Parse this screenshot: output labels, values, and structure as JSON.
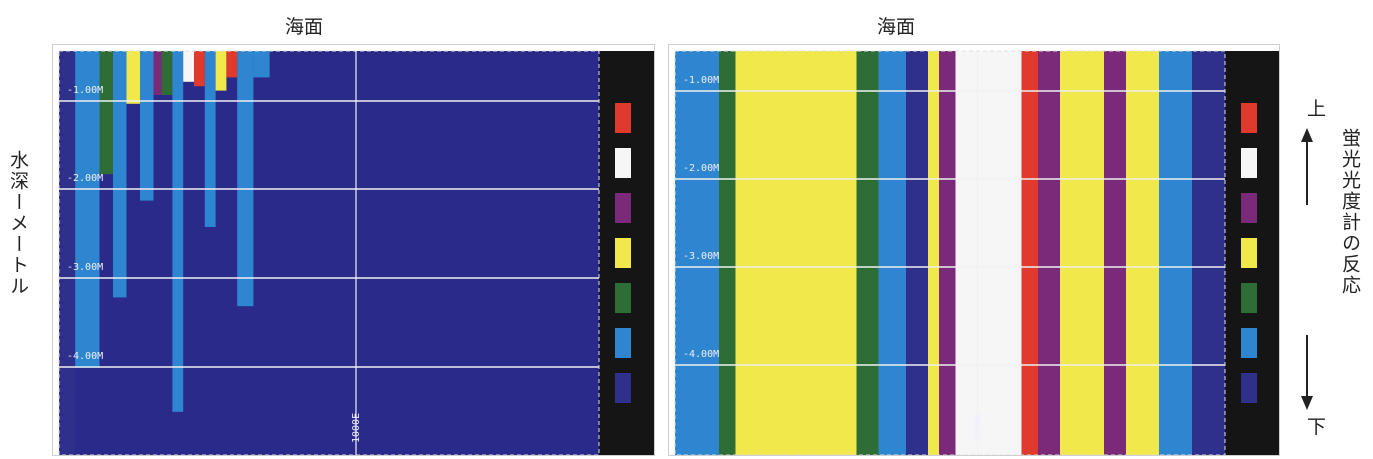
{
  "surface_label_left": "海面",
  "surface_label_right": "海面",
  "y_axis_title": "水深ーメートル",
  "right_axis_title": "蛍光光度計の反応",
  "arrow_top_label": "上",
  "arrow_bottom_label": "下",
  "colors": {
    "background": "#2a2a8a",
    "legend_bg": "#151515",
    "scale": [
      "#e03a2e",
      "#f6f6f6",
      "#7a2a78",
      "#f1e84b",
      "#2e6e36",
      "#2f86d0",
      "#2f2f8c"
    ]
  },
  "chart_data": [
    {
      "type": "heatmap",
      "depth_ticks": [
        "-1.00M",
        "-2.00M",
        "-3.00M",
        "-4.00M"
      ],
      "distance_label": "1000E",
      "value_scale_order": [
        "red",
        "white",
        "purple",
        "yellow",
        "green",
        "blue",
        "navy"
      ],
      "columns": [
        {
          "x_frac_start": 0.0,
          "x_frac_end": 0.03,
          "depth_m": 5.0,
          "top": "navy"
        },
        {
          "x_frac_start": 0.03,
          "x_frac_end": 0.075,
          "depth_m": 3.6,
          "top": "blue"
        },
        {
          "x_frac_start": 0.075,
          "x_frac_end": 0.1,
          "depth_m": 1.4,
          "top": "green"
        },
        {
          "x_frac_start": 0.1,
          "x_frac_end": 0.125,
          "depth_m": 2.8,
          "top": "blue"
        },
        {
          "x_frac_start": 0.125,
          "x_frac_end": 0.15,
          "depth_m": 0.6,
          "top": "yellow"
        },
        {
          "x_frac_start": 0.15,
          "x_frac_end": 0.175,
          "depth_m": 1.7,
          "top": "blue"
        },
        {
          "x_frac_start": 0.175,
          "x_frac_end": 0.19,
          "depth_m": 0.5,
          "top": "purple"
        },
        {
          "x_frac_start": 0.19,
          "x_frac_end": 0.21,
          "depth_m": 0.5,
          "top": "green"
        },
        {
          "x_frac_start": 0.21,
          "x_frac_end": 0.23,
          "depth_m": 4.1,
          "top": "blue"
        },
        {
          "x_frac_start": 0.23,
          "x_frac_end": 0.25,
          "depth_m": 0.35,
          "top": "white"
        },
        {
          "x_frac_start": 0.25,
          "x_frac_end": 0.27,
          "depth_m": 0.4,
          "top": "red"
        },
        {
          "x_frac_start": 0.27,
          "x_frac_end": 0.29,
          "depth_m": 2.0,
          "top": "blue"
        },
        {
          "x_frac_start": 0.29,
          "x_frac_end": 0.31,
          "depth_m": 0.45,
          "top": "yellow"
        },
        {
          "x_frac_start": 0.31,
          "x_frac_end": 0.33,
          "depth_m": 0.3,
          "top": "red"
        },
        {
          "x_frac_start": 0.33,
          "x_frac_end": 0.36,
          "depth_m": 2.9,
          "top": "blue"
        },
        {
          "x_frac_start": 0.36,
          "x_frac_end": 0.39,
          "depth_m": 0.3,
          "top": "blue"
        },
        {
          "x_frac_start": 0.39,
          "x_frac_end": 1.0,
          "depth_m": 0.0,
          "top": "navy"
        }
      ]
    },
    {
      "type": "heatmap",
      "depth_ticks": [
        "-1.00M",
        "-2.00M",
        "-3.00M",
        "-4.00M"
      ],
      "distance_label": "1000E",
      "value_scale_order": [
        "red",
        "white",
        "purple",
        "yellow",
        "green",
        "blue",
        "navy"
      ],
      "columns": [
        {
          "x_frac_start": 0.0,
          "x_frac_end": 0.08,
          "depth_m": 5.0,
          "top": "blue"
        },
        {
          "x_frac_start": 0.08,
          "x_frac_end": 0.11,
          "depth_m": 5.0,
          "top": "green"
        },
        {
          "x_frac_start": 0.11,
          "x_frac_end": 0.33,
          "depth_m": 5.0,
          "top": "yellow"
        },
        {
          "x_frac_start": 0.33,
          "x_frac_end": 0.37,
          "depth_m": 5.0,
          "top": "green"
        },
        {
          "x_frac_start": 0.37,
          "x_frac_end": 0.42,
          "depth_m": 5.0,
          "top": "blue"
        },
        {
          "x_frac_start": 0.42,
          "x_frac_end": 0.46,
          "depth_m": 5.0,
          "top": "navy"
        },
        {
          "x_frac_start": 0.46,
          "x_frac_end": 0.48,
          "depth_m": 5.0,
          "top": "yellow"
        },
        {
          "x_frac_start": 0.48,
          "x_frac_end": 0.51,
          "depth_m": 5.0,
          "top": "purple"
        },
        {
          "x_frac_start": 0.51,
          "x_frac_end": 0.63,
          "depth_m": 5.0,
          "top": "white"
        },
        {
          "x_frac_start": 0.63,
          "x_frac_end": 0.66,
          "depth_m": 5.0,
          "top": "red"
        },
        {
          "x_frac_start": 0.66,
          "x_frac_end": 0.7,
          "depth_m": 5.0,
          "top": "purple"
        },
        {
          "x_frac_start": 0.7,
          "x_frac_end": 0.78,
          "depth_m": 5.0,
          "top": "yellow"
        },
        {
          "x_frac_start": 0.78,
          "x_frac_end": 0.82,
          "depth_m": 5.0,
          "top": "purple"
        },
        {
          "x_frac_start": 0.82,
          "x_frac_end": 0.88,
          "depth_m": 5.0,
          "top": "yellow"
        },
        {
          "x_frac_start": 0.88,
          "x_frac_end": 0.94,
          "depth_m": 5.0,
          "top": "blue"
        },
        {
          "x_frac_start": 0.94,
          "x_frac_end": 1.0,
          "depth_m": 5.0,
          "top": "navy"
        }
      ]
    }
  ]
}
